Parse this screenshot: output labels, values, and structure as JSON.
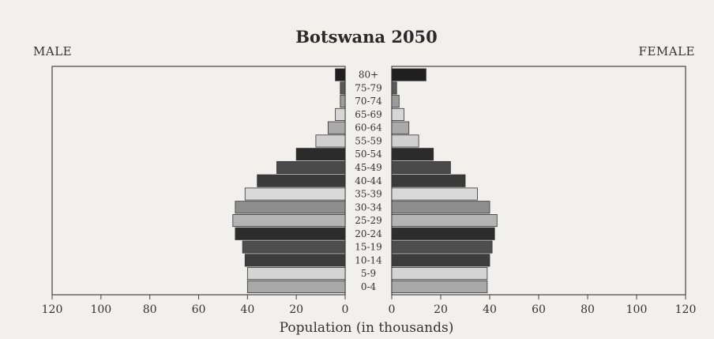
{
  "chart_data": {
    "type": "bar",
    "title": "Botswana 2050",
    "left_label": "MALE",
    "right_label": "FEMALE",
    "xlabel": "Population (in thousands)",
    "xlim": [
      0,
      120
    ],
    "x_ticks_left": [
      "120",
      "100",
      "80",
      "60",
      "40",
      "20",
      "0"
    ],
    "x_ticks_right": [
      "0",
      "20",
      "40",
      "60",
      "80",
      "100",
      "120"
    ],
    "categories": [
      "80+",
      "75-79",
      "70-74",
      "65-69",
      "60-64",
      "55-59",
      "50-54",
      "45-49",
      "40-44",
      "35-39",
      "30-34",
      "25-29",
      "20-24",
      "15-19",
      "10-14",
      "5-9",
      "0-4"
    ],
    "series": [
      {
        "name": "MALE",
        "values": [
          4,
          2,
          2,
          4,
          7,
          12,
          20,
          28,
          36,
          41,
          45,
          46,
          45,
          42,
          41,
          40,
          40
        ]
      },
      {
        "name": "FEMALE",
        "values": [
          14,
          2,
          3,
          5,
          7,
          11,
          17,
          24,
          30,
          35,
          40,
          43,
          42,
          41,
          40,
          39,
          39
        ]
      }
    ],
    "bar_colors": [
      "#1f1f1f",
      "#5a5a5a",
      "#9c9c9c",
      "#d6d6d6",
      "#aaaaaa",
      "#d0d0d0",
      "#2b2b2b",
      "#4a4a4a",
      "#3a3a3a",
      "#d8d8d8",
      "#8e8e8e",
      "#b4b4b4",
      "#2c2c2c",
      "#4e4e4e",
      "#3c3c3c",
      "#d4d4d4",
      "#a8a8a8"
    ]
  }
}
